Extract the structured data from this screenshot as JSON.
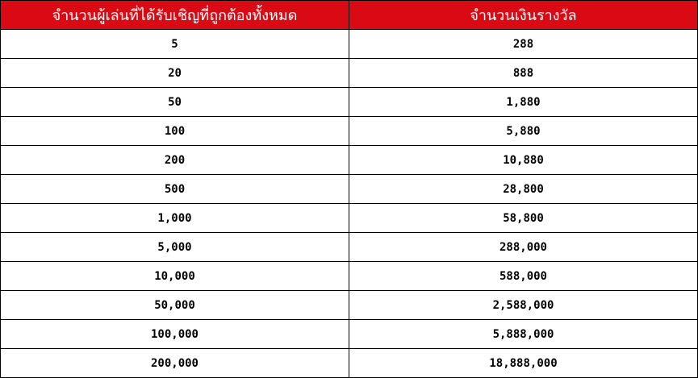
{
  "table": {
    "header_color": "#d90a14",
    "columns": [
      "จำนวนผู้เล่นที่ได้รับเชิญที่ถูกต้องทั้งหมด",
      "จำนวนเงินรางวัล"
    ],
    "rows": [
      [
        "5",
        "288"
      ],
      [
        "20",
        "888"
      ],
      [
        "50",
        "1,880"
      ],
      [
        "100",
        "5,880"
      ],
      [
        "200",
        "10,880"
      ],
      [
        "500",
        "28,800"
      ],
      [
        "1,000",
        "58,800"
      ],
      [
        "5,000",
        "288,000"
      ],
      [
        "10,000",
        "588,000"
      ],
      [
        "50,000",
        "2,588,000"
      ],
      [
        "100,000",
        "5,888,000"
      ],
      [
        "200,000",
        "18,888,000"
      ]
    ]
  }
}
